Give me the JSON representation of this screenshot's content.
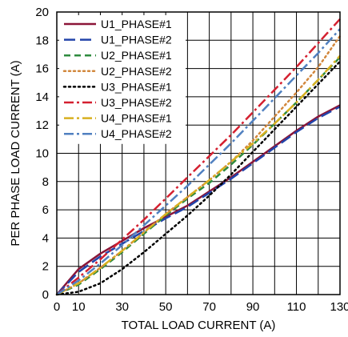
{
  "chart_data": {
    "type": "line",
    "xlabel": "TOTAL LOAD CURRENT (A)",
    "ylabel": "PER PHASE LOAD CURRENT (A)",
    "xlim": [
      0,
      130
    ],
    "ylim": [
      0,
      20
    ],
    "x_ticks": [
      0,
      10,
      30,
      50,
      70,
      90,
      110,
      130
    ],
    "y_ticks": [
      0,
      2,
      4,
      6,
      8,
      10,
      12,
      14,
      16,
      18,
      20
    ],
    "grid": true,
    "legend_placement": "top-left",
    "series": [
      {
        "name": "U1_PHASE#1",
        "color": "#8b1538",
        "dash": "solid",
        "x": [
          0,
          10,
          20,
          30,
          40,
          50,
          60,
          70,
          80,
          90,
          100,
          110,
          120,
          130
        ],
        "y": [
          0,
          1.8,
          2.9,
          3.8,
          4.7,
          5.5,
          6.3,
          7.3,
          8.3,
          9.4,
          10.5,
          11.6,
          12.6,
          13.4
        ]
      },
      {
        "name": "U1_PHASE#2",
        "color": "#2244aa",
        "dash": "longdash",
        "x": [
          0,
          10,
          20,
          30,
          40,
          50,
          60,
          70,
          80,
          90,
          100,
          110,
          120,
          130
        ],
        "y": [
          0,
          1.6,
          2.7,
          3.6,
          4.5,
          5.4,
          6.2,
          7.2,
          8.2,
          9.3,
          10.4,
          11.5,
          12.5,
          13.3
        ]
      },
      {
        "name": "U2_PHASE#1",
        "color": "#2e8b3e",
        "dash": "dash",
        "x": [
          0,
          10,
          20,
          30,
          40,
          50,
          60,
          70,
          80,
          90,
          100,
          110,
          120,
          130
        ],
        "y": [
          0,
          0.7,
          1.8,
          3.0,
          4.3,
          5.6,
          6.8,
          7.9,
          9.2,
          10.6,
          12.1,
          13.6,
          15.2,
          16.8
        ]
      },
      {
        "name": "U2_PHASE#2",
        "color": "#d2873c",
        "dash": "dot",
        "x": [
          0,
          10,
          20,
          30,
          40,
          50,
          60,
          70,
          80,
          90,
          100,
          110,
          120,
          130
        ],
        "y": [
          0,
          0.8,
          1.9,
          3.1,
          4.4,
          5.7,
          6.9,
          8.1,
          9.4,
          10.9,
          12.6,
          14.3,
          16.1,
          18.3
        ]
      },
      {
        "name": "U3_PHASE#1",
        "color": "#000000",
        "dash": "dot",
        "x": [
          0,
          10,
          20,
          30,
          40,
          50,
          60,
          70,
          80,
          90,
          100,
          110,
          120,
          130
        ],
        "y": [
          0,
          0.2,
          0.8,
          1.8,
          3.0,
          4.3,
          5.6,
          7.0,
          8.5,
          10.1,
          11.7,
          13.3,
          14.9,
          16.5
        ]
      },
      {
        "name": "U3_PHASE#2",
        "color": "#d42030",
        "dash": "dashdot",
        "x": [
          0,
          10,
          20,
          30,
          40,
          50,
          60,
          70,
          80,
          90,
          100,
          110,
          120,
          130
        ],
        "y": [
          0,
          1.2,
          2.5,
          3.9,
          5.3,
          6.8,
          8.3,
          9.8,
          11.3,
          12.9,
          14.5,
          16.1,
          17.8,
          19.5
        ]
      },
      {
        "name": "U4_PHASE#1",
        "color": "#d8b020",
        "dash": "dashdot",
        "x": [
          0,
          10,
          20,
          30,
          40,
          50,
          60,
          70,
          80,
          90,
          100,
          110,
          120,
          130
        ],
        "y": [
          0,
          0.8,
          1.9,
          3.1,
          4.4,
          5.7,
          6.9,
          8.1,
          9.4,
          10.7,
          12.1,
          13.6,
          15.2,
          16.9
        ]
      },
      {
        "name": "U4_PHASE#2",
        "color": "#5080c0",
        "dash": "dashdot",
        "x": [
          0,
          10,
          20,
          30,
          40,
          50,
          60,
          70,
          80,
          90,
          100,
          110,
          120,
          130
        ],
        "y": [
          0,
          1.0,
          2.2,
          3.5,
          4.9,
          6.3,
          7.7,
          9.2,
          10.7,
          12.3,
          13.9,
          15.5,
          17.1,
          18.8
        ]
      }
    ]
  }
}
